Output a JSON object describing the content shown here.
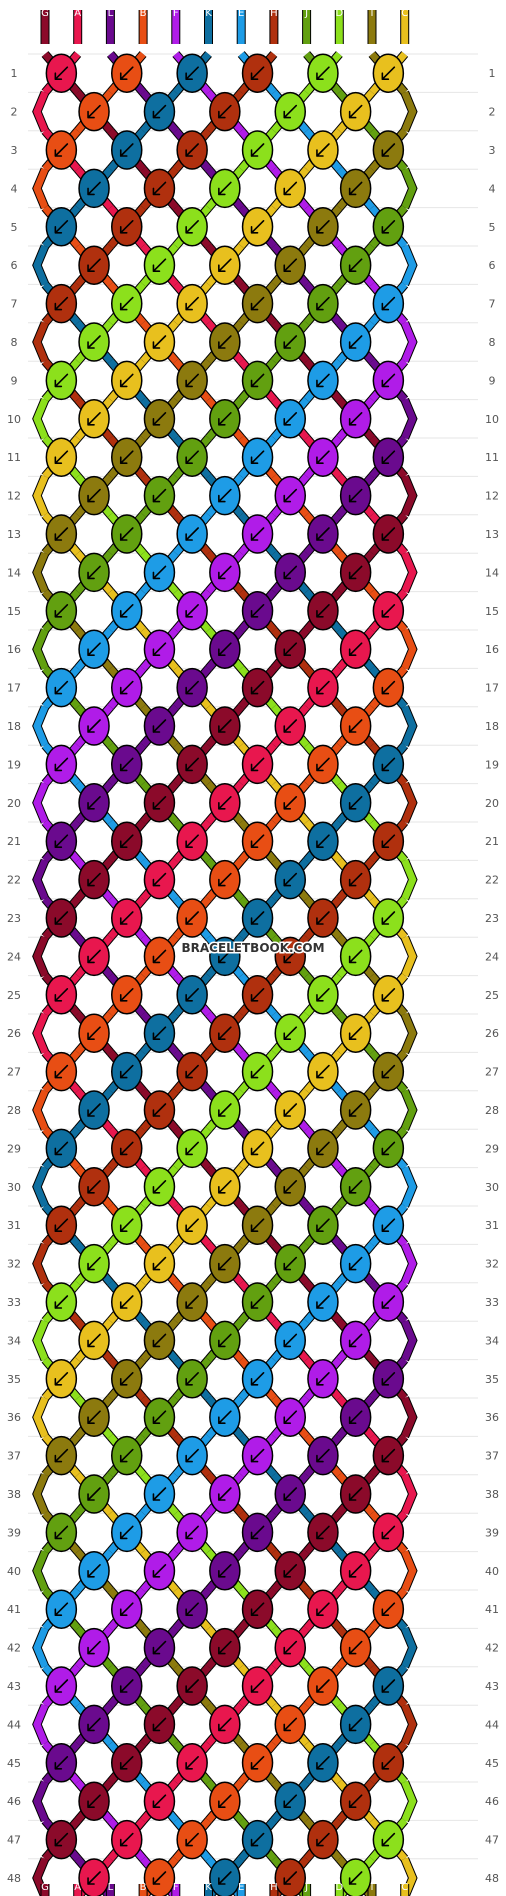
{
  "watermark": "BRACELETBOOK.COM",
  "pattern": {
    "rows": 48,
    "strings": [
      "G",
      "A",
      "L",
      "B",
      "F",
      "K",
      "E",
      "H",
      "J",
      "D",
      "I",
      "C"
    ],
    "string_colors": {
      "G": "#8B0A2A",
      "A": "#E8174E",
      "L": "#6A0A8E",
      "B": "#E84E14",
      "F": "#B01CE8",
      "K": "#0E6FA0",
      "E": "#1E9CE6",
      "H": "#B0300E",
      "J": "#62A010",
      "D": "#8CE01C",
      "I": "#8C7A0E",
      "C": "#E8C01E"
    },
    "knot_type": "forward-left"
  }
}
